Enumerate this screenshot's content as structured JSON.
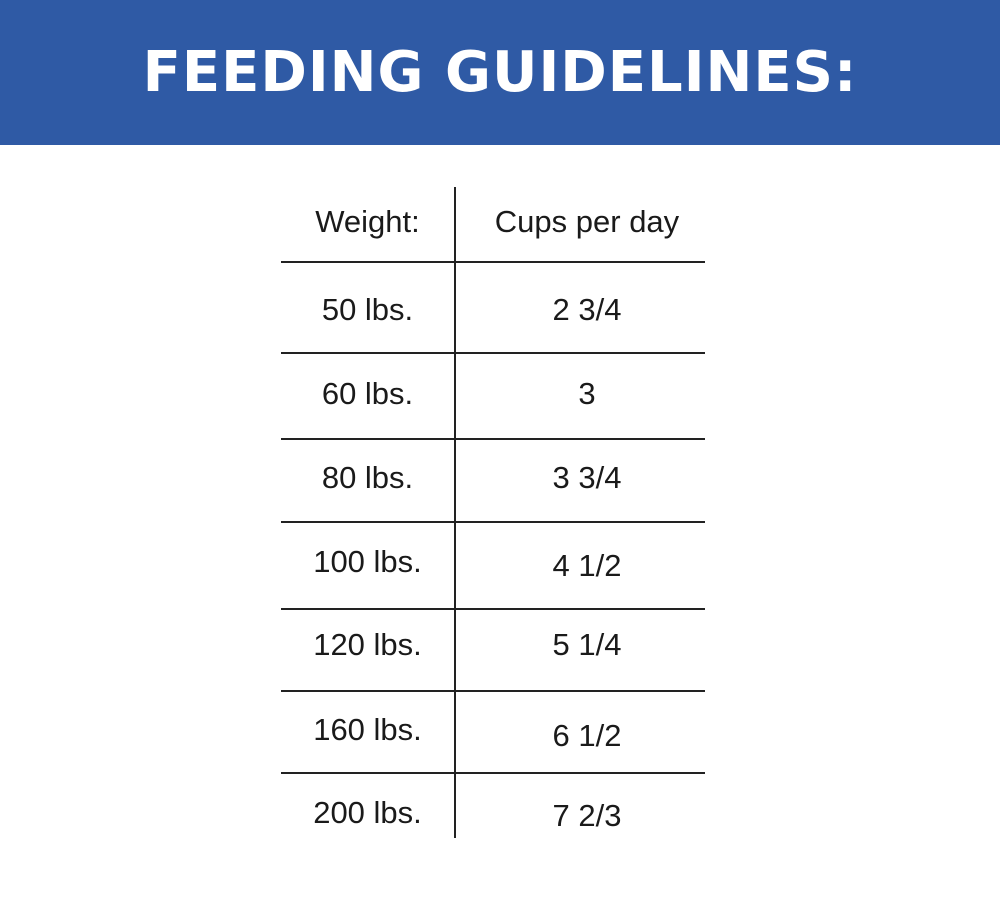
{
  "title": "FEEDING GUIDELINES:",
  "colors": {
    "banner": "#2f5aa5",
    "text": "#1a1a1a"
  },
  "table": {
    "headers": [
      "Weight:",
      "Cups per day"
    ],
    "rows": [
      [
        "50 lbs.",
        "2 3/4"
      ],
      [
        "60 lbs.",
        "3"
      ],
      [
        "80 lbs.",
        "3 3/4"
      ],
      [
        "100 lbs.",
        "4 1/2"
      ],
      [
        "120 lbs.",
        "5 1/4"
      ],
      [
        "160 lbs.",
        "6 1/2"
      ],
      [
        "200 lbs.",
        "7 2/3"
      ]
    ]
  }
}
